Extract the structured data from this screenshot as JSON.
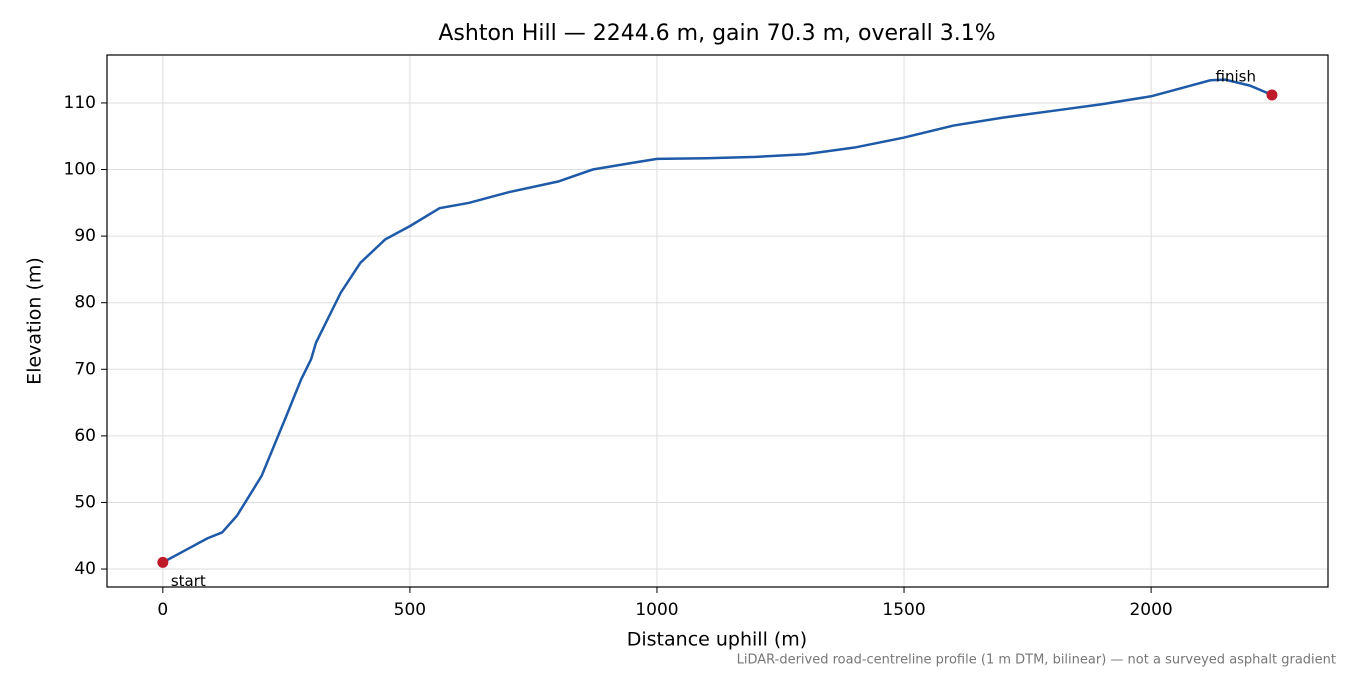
{
  "chart_data": {
    "type": "line",
    "title": "Ashton Hill — 2244.6 m, gain 70.3 m, overall 3.1%",
    "x_label": "Distance uphill (m)",
    "y_label": "Elevation (m)",
    "footnote": "LiDAR-derived road-centreline profile (1 m DTM, bilinear) — not a surveyed asphalt gradient",
    "x": [
      0,
      50,
      90,
      120,
      150,
      200,
      250,
      280,
      300,
      310,
      330,
      360,
      400,
      450,
      500,
      560,
      620,
      700,
      800,
      870,
      950,
      1000,
      1100,
      1200,
      1300,
      1400,
      1500,
      1600,
      1700,
      1800,
      1900,
      2000,
      2060,
      2120,
      2150,
      2200,
      2244.6
    ],
    "series": [
      {
        "color": "#1f5aa8",
        "values": [
          41,
          43,
          44.6,
          45.5,
          48,
          54,
          63,
          68.5,
          71.5,
          74,
          77,
          81.5,
          86,
          89.5,
          91.5,
          94.2,
          95,
          96.6,
          98.2,
          100,
          101,
          101.6,
          101.7,
          101.9,
          102.3,
          103.3,
          104.8,
          106.6,
          107.8,
          108.8,
          109.8,
          111,
          112.2,
          113.4,
          113.5,
          112.6,
          111.2
        ]
      }
    ],
    "markers": {
      "color": "#c0192a",
      "labels": [
        "start",
        "finish"
      ],
      "x": [
        0,
        2244.6
      ],
      "values": [
        41,
        111.2
      ]
    },
    "xlim": [
      -113,
      2358
    ],
    "ylim": [
      37.3,
      117.2
    ],
    "xticks": [
      0,
      500,
      1000,
      1500,
      2000
    ],
    "yticks": [
      40,
      50,
      60,
      70,
      80,
      90,
      100,
      110
    ],
    "grid": true
  }
}
